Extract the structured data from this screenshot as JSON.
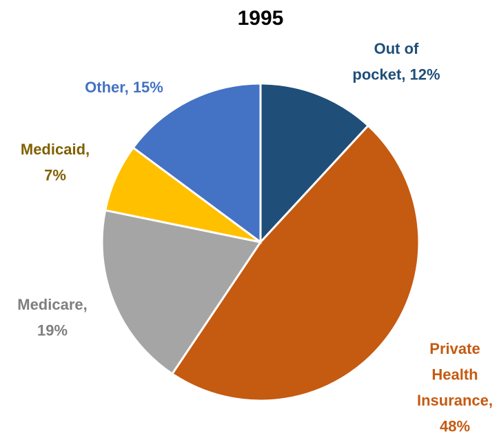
{
  "chart_data": {
    "type": "pie",
    "title": "1995",
    "values": [
      12,
      48,
      19,
      7,
      15
    ],
    "labels": [
      [
        "Out of",
        "pocket, 12%"
      ],
      [
        "Private",
        "Health",
        "Insurance,",
        "48%"
      ],
      [
        "Medicare,",
        "19%"
      ],
      [
        "Medicaid,",
        "7%"
      ],
      [
        "Other, 15%"
      ]
    ],
    "colors": [
      "#1f4e79",
      "#c55a11",
      "#a5a5a5",
      "#ffc000",
      "#4472c4"
    ],
    "label_colors": [
      "#1f4e79",
      "#c55a11",
      "#7f7f7f",
      "#806000",
      "#4472c4"
    ]
  }
}
